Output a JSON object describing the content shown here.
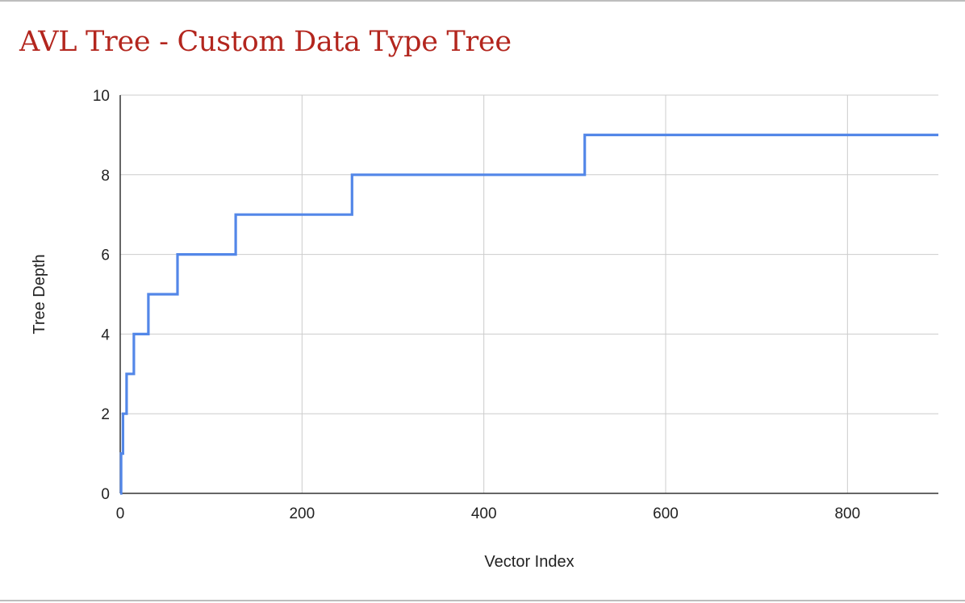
{
  "chart_data": {
    "type": "line",
    "title": "AVL Tree - Custom Data Type Tree",
    "xlabel": "Vector Index",
    "ylabel": "Tree Depth",
    "xlim": [
      0,
      900
    ],
    "ylim": [
      0,
      10
    ],
    "x_ticks": [
      0,
      200,
      400,
      600,
      800
    ],
    "y_ticks": [
      0,
      2,
      4,
      6,
      8,
      10
    ],
    "grid": true,
    "line_color": "#5387e8",
    "title_color": "#b3261e",
    "series": [
      {
        "x": [
          0,
          1,
          1,
          3,
          3,
          7,
          7,
          15,
          15,
          31,
          31,
          63,
          63,
          127,
          127,
          255,
          255,
          511,
          511,
          900
        ],
        "y": [
          0,
          0,
          1,
          1,
          2,
          2,
          3,
          3,
          4,
          4,
          5,
          5,
          6,
          6,
          7,
          7,
          8,
          8,
          9,
          9
        ]
      }
    ]
  }
}
